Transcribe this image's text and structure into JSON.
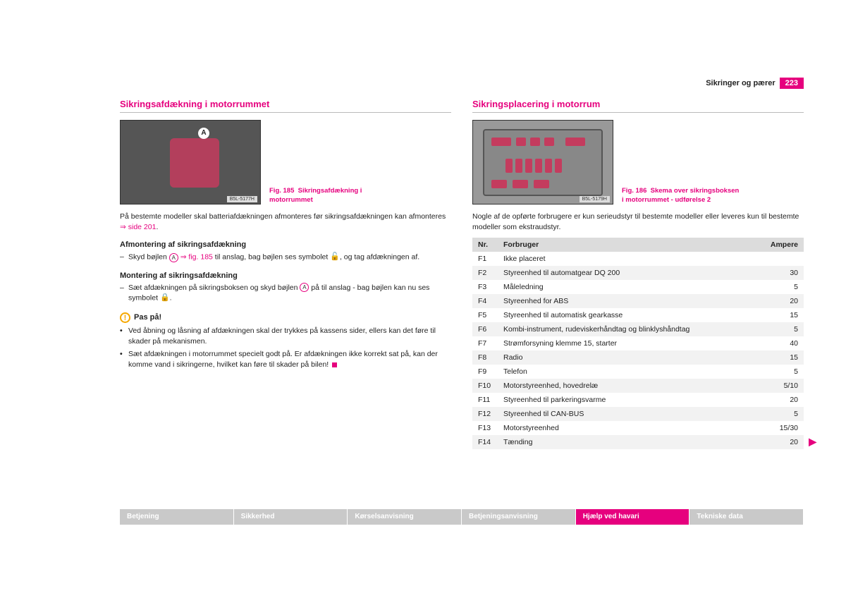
{
  "header": {
    "section": "Sikringer og pærer",
    "page": "223"
  },
  "left": {
    "title": "Sikringsafdækning i motorrummet",
    "fig_id": "B5L-5177H",
    "fig_caption_a": "Fig. 185",
    "fig_caption_b": "Sikringsafdækning i motorrummet",
    "para1_a": "På bestemte modeller skal batteriafdækningen afmonteres før sikringsafdækningen kan afmonteres ",
    "para1_link": "side 201",
    "h_afm": "Afmontering af sikringsafdækning",
    "li_afm_a": "Skyd bøjlen ",
    "li_afm_b": " fig. 185",
    "li_afm_c": " til anslag, bag bøjlen ses symbolet ",
    "li_afm_d": ", og tag afdækningen af.",
    "h_mon": "Montering af sikringsafdækning",
    "li_mon_a": "Sæt afdækningen på sikringsboksen og skyd bøjlen ",
    "li_mon_b": " på til anslag - bag bøjlen kan nu ses symbolet ",
    "warn_title": "Pas på!",
    "warn1": "Ved åbning og låsning af afdækningen skal der trykkes på kassens sider, ellers kan det føre til skader på mekanismen.",
    "warn2": "Sæt afdækningen i motorrummet specielt godt på. Er afdækningen ikke korrekt sat på, kan der komme vand i sikringerne, hvilket kan føre til skader på bilen! "
  },
  "right": {
    "title": "Sikringsplacering i motorrum",
    "fig_id": "B5L-5179H",
    "fig_caption_a": "Fig. 186",
    "fig_caption_b": "Skema over sikringsboksen i motorrummet - udførelse 2",
    "para1": "Nogle af de opførte forbrugere er kun serieudstyr til bestemte modeller eller leveres kun til bestemte modeller som ekstraudstyr.",
    "table": {
      "columns": [
        "Nr.",
        "Forbruger",
        "Ampere"
      ],
      "rows": [
        [
          "F1",
          "Ikke placeret",
          ""
        ],
        [
          "F2",
          "Styreenhed til automatgear DQ 200",
          "30"
        ],
        [
          "F3",
          "Måleledning",
          "5"
        ],
        [
          "F4",
          "Styreenhed for ABS",
          "20"
        ],
        [
          "F5",
          "Styreenhed til automatisk gearkasse",
          "15"
        ],
        [
          "F6",
          "Kombi-instrument, rudeviskerhåndtag og blinklyshåndtag",
          "5"
        ],
        [
          "F7",
          "Strømforsyning klemme 15, starter",
          "40"
        ],
        [
          "F8",
          "Radio",
          "15"
        ],
        [
          "F9",
          "Telefon",
          "5"
        ],
        [
          "F10",
          "Motorstyreenhed, hovedrelæ",
          "5/10"
        ],
        [
          "F11",
          "Styreenhed til parkeringsvarme",
          "20"
        ],
        [
          "F12",
          "Styreenhed til CAN-BUS",
          "5"
        ],
        [
          "F13",
          "Motorstyreenhed",
          "15/30"
        ],
        [
          "F14",
          "Tænding",
          "20"
        ]
      ]
    }
  },
  "tabs": {
    "items": [
      "Betjening",
      "Sikkerhed",
      "Kørselsanvisning",
      "Betjeningsanvisning",
      "Hjælp ved havari",
      "Tekniske data"
    ],
    "active_index": 4
  },
  "colors": {
    "accent": "#e6007e",
    "warn": "#f6a800"
  }
}
